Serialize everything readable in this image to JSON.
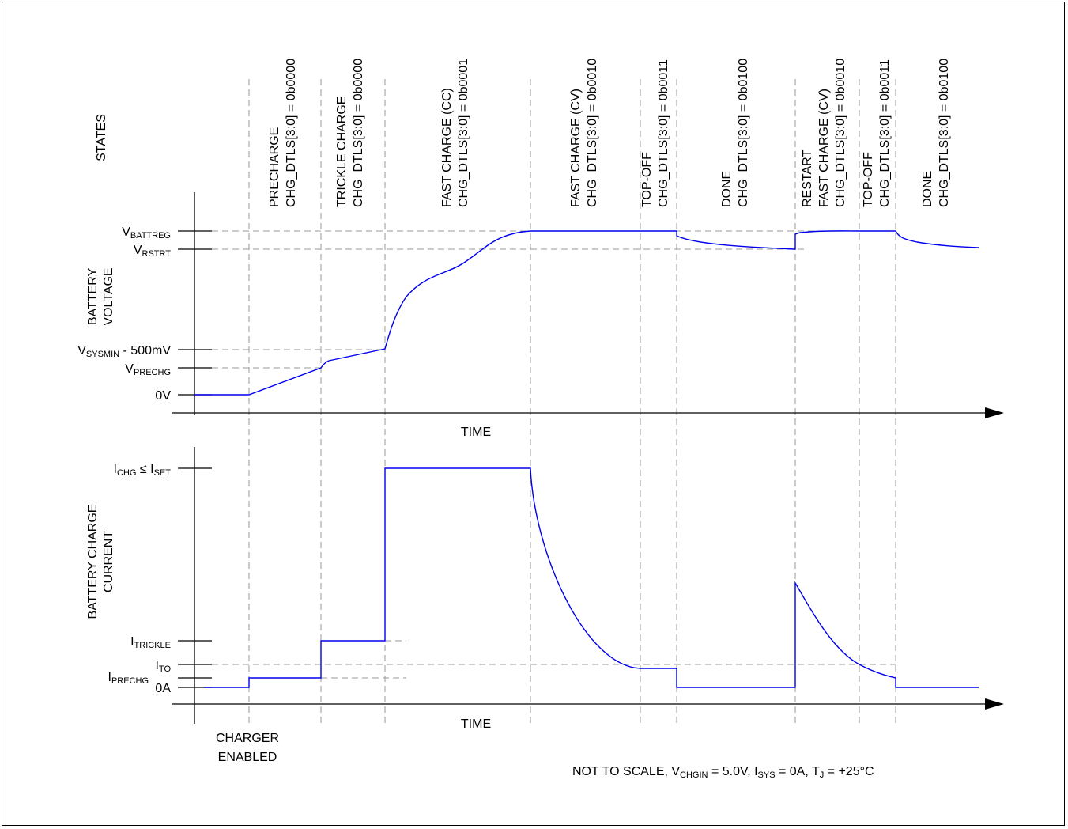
{
  "row_labels": {
    "states": "STATES",
    "battery_voltage": [
      "BATTERY",
      "VOLTAGE"
    ],
    "battery_charge_current": [
      "BATTERY CHARGE",
      "CURRENT"
    ]
  },
  "states": [
    {
      "lines": [
        "PRECHARGE",
        "CHG_DTLS[3:0] = 0b0000"
      ]
    },
    {
      "lines": [
        "TRICKLE CHARGE",
        "CHG_DTLS[3:0] = 0b0000"
      ]
    },
    {
      "lines": [
        "FAST CHARGE (CC)",
        "CHG_DTLS[3:0] = 0b0001"
      ]
    },
    {
      "lines": [
        "FAST CHARGE (CV)",
        "CHG_DTLS[3:0] = 0b0010"
      ]
    },
    {
      "lines": [
        "TOP-OFF",
        "CHG_DTLS[3:0] = 0b0011"
      ]
    },
    {
      "lines": [
        "DONE",
        "CHG_DTLS[3:0] = 0b0100"
      ]
    },
    {
      "lines": [
        "RESTART",
        "FAST CHARGE (CV)",
        "CHG_DTLS[3:0] = 0b0010"
      ]
    },
    {
      "lines": [
        "TOP-OFF",
        "CHG_DTLS[3:0] = 0b0011"
      ]
    },
    {
      "lines": [
        "DONE",
        "CHG_DTLS[3:0] = 0b0100"
      ]
    }
  ],
  "voltage_levels": {
    "vbattreg": {
      "main": "V",
      "sub": "BATTREG",
      "rest": ""
    },
    "vrstrt": {
      "main": "V",
      "sub": "RSTRT",
      "rest": ""
    },
    "vsysmin": {
      "main": "V",
      "sub": "SYSMIN",
      "rest": " - 500mV"
    },
    "vprechg": {
      "main": "V",
      "sub": "PRECHG",
      "rest": ""
    },
    "zero": {
      "main": "0V",
      "sub": "",
      "rest": ""
    }
  },
  "current_levels": {
    "ichg_le": "≤",
    "ichg_main": "I",
    "ichg_sub": "CHG",
    "iset_main": "I",
    "iset_sub": "SET",
    "itrickle": {
      "main": "I",
      "sub": "TRICKLE"
    },
    "ito": {
      "main": "I",
      "sub": "TO"
    },
    "iprechg": {
      "main": "I",
      "sub": "PRECHG"
    },
    "zero": "0A"
  },
  "time_label_top": "TIME",
  "time_label_bottom": "TIME",
  "charger_enabled": [
    "CHARGER",
    "ENABLED"
  ],
  "footnote": {
    "pre": "NOT TO SCALE, V",
    "vsub": "CHGIN",
    "mid1": " = 5.0V, I",
    "isub": "SYS",
    "mid2": " = 0A, T",
    "tsub": "J",
    "post": " = +25°C"
  },
  "colors": {
    "trace": "#0000ee",
    "guide": "#9a9a9a",
    "axis": "#000000"
  }
}
